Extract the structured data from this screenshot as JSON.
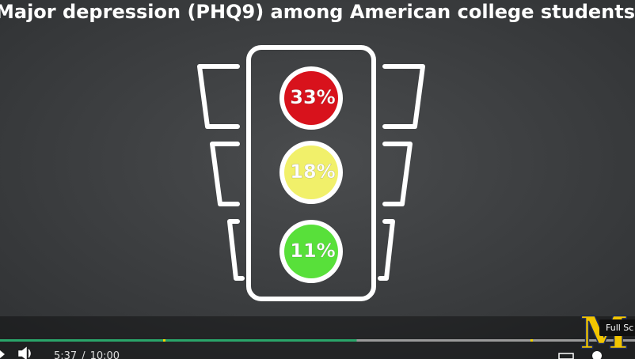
{
  "video": {
    "title": "Major depression (PHQ9) among American college students",
    "lights": [
      {
        "label": "33%",
        "color": "#d8121c"
      },
      {
        "label": "18%",
        "color": "#f1f06a"
      },
      {
        "label": "11%",
        "color": "#58e03a"
      }
    ]
  },
  "player": {
    "current_time": "5:37",
    "separator": "/",
    "duration": "10:00",
    "tooltip": "Full Sc",
    "logo": "M"
  }
}
